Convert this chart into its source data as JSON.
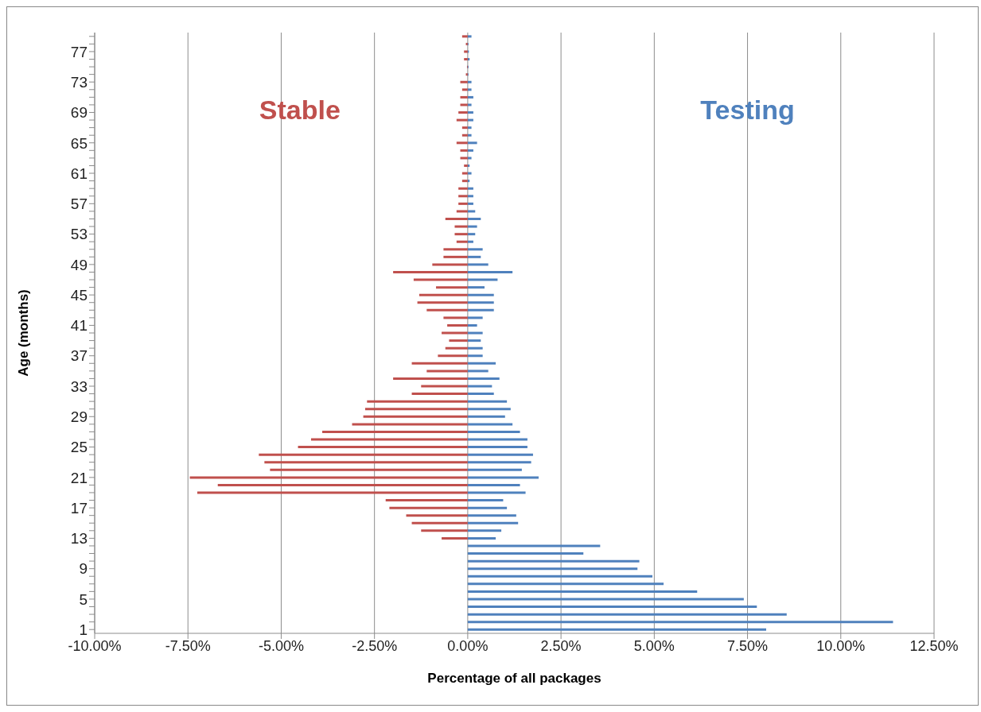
{
  "chart_data": {
    "type": "bar",
    "orientation": "horizontal",
    "stacked": true,
    "xlabel": "Percentage of all packages",
    "ylabel": "Age (months)",
    "categories": [
      null,
      null,
      "77",
      null,
      null,
      null,
      "73",
      null,
      null,
      null,
      "69",
      null,
      null,
      null,
      "65",
      null,
      null,
      null,
      "61",
      null,
      null,
      null,
      "57",
      null,
      null,
      null,
      "53",
      null,
      null,
      null,
      "49",
      null,
      null,
      null,
      "45",
      null,
      null,
      null,
      "41",
      null,
      null,
      null,
      "37",
      null,
      null,
      null,
      "33",
      null,
      null,
      null,
      "29",
      null,
      null,
      null,
      "25",
      null,
      null,
      null,
      "21",
      null,
      null,
      null,
      "17",
      null,
      null,
      null,
      "13",
      null,
      null,
      null,
      "9",
      null,
      null,
      null,
      "5",
      null,
      null,
      null,
      "1"
    ],
    "series": [
      {
        "name": "Stable",
        "color": "#c0504d",
        "values": [
          -0.15,
          -0.05,
          -0.1,
          -0.1,
          -0.02,
          -0.05,
          -0.2,
          -0.15,
          -0.2,
          -0.2,
          -0.25,
          -0.3,
          -0.15,
          -0.15,
          -0.3,
          -0.2,
          -0.2,
          -0.1,
          -0.15,
          -0.15,
          -0.25,
          -0.25,
          -0.25,
          -0.3,
          -0.6,
          -0.35,
          -0.35,
          -0.3,
          -0.65,
          -0.65,
          -0.95,
          -2.0,
          -1.45,
          -0.85,
          -1.3,
          -1.35,
          -1.1,
          -0.65,
          -0.55,
          -0.7,
          -0.5,
          -0.6,
          -0.8,
          -1.5,
          -1.1,
          -2.0,
          -1.25,
          -1.5,
          -2.7,
          -2.75,
          -2.8,
          -3.1,
          -3.9,
          -4.2,
          -4.55,
          -5.6,
          -5.45,
          -5.3,
          -7.45,
          -6.7,
          -7.25,
          -2.2,
          -2.1,
          -1.65,
          -1.5,
          -1.25,
          -0.7,
          null,
          null,
          null,
          null,
          null,
          null,
          null,
          null,
          null,
          null,
          null,
          null
        ]
      },
      {
        "name": "Testing",
        "color": "#4f81bd",
        "values": [
          0.1,
          0.02,
          0.03,
          0.05,
          0.02,
          0.02,
          0.1,
          0.1,
          0.15,
          0.1,
          0.15,
          0.15,
          0.1,
          0.1,
          0.25,
          0.15,
          0.1,
          0.05,
          0.1,
          0.05,
          0.15,
          0.15,
          0.15,
          0.2,
          0.35,
          0.25,
          0.2,
          0.15,
          0.4,
          0.35,
          0.55,
          1.2,
          0.8,
          0.45,
          0.7,
          0.7,
          0.7,
          0.4,
          0.25,
          0.4,
          0.35,
          0.4,
          0.4,
          0.75,
          0.55,
          0.85,
          0.65,
          0.7,
          1.05,
          1.15,
          1.0,
          1.2,
          1.4,
          1.6,
          1.6,
          1.75,
          1.7,
          1.45,
          1.9,
          1.4,
          1.55,
          0.95,
          1.05,
          1.3,
          1.35,
          0.9,
          0.75,
          3.55,
          3.1,
          4.6,
          4.55,
          4.95,
          5.25,
          6.15,
          7.4,
          7.75,
          8.55,
          11.4,
          8.0
        ]
      }
    ],
    "xlim": [
      -10,
      12.5
    ],
    "xticks": [
      {
        "value": -10,
        "label": "-10.00%"
      },
      {
        "value": -7.5,
        "label": "-7.50%"
      },
      {
        "value": -5,
        "label": "-5.00%"
      },
      {
        "value": -2.5,
        "label": "-2.50%"
      },
      {
        "value": 0,
        "label": "0.00%"
      },
      {
        "value": 2.5,
        "label": "2.50%"
      },
      {
        "value": 5,
        "label": "5.00%"
      },
      {
        "value": 7.5,
        "label": "7.50%"
      },
      {
        "value": 10,
        "label": "10.00%"
      },
      {
        "value": 12.5,
        "label": "12.50%"
      }
    ],
    "grid": "x",
    "legend": false
  }
}
